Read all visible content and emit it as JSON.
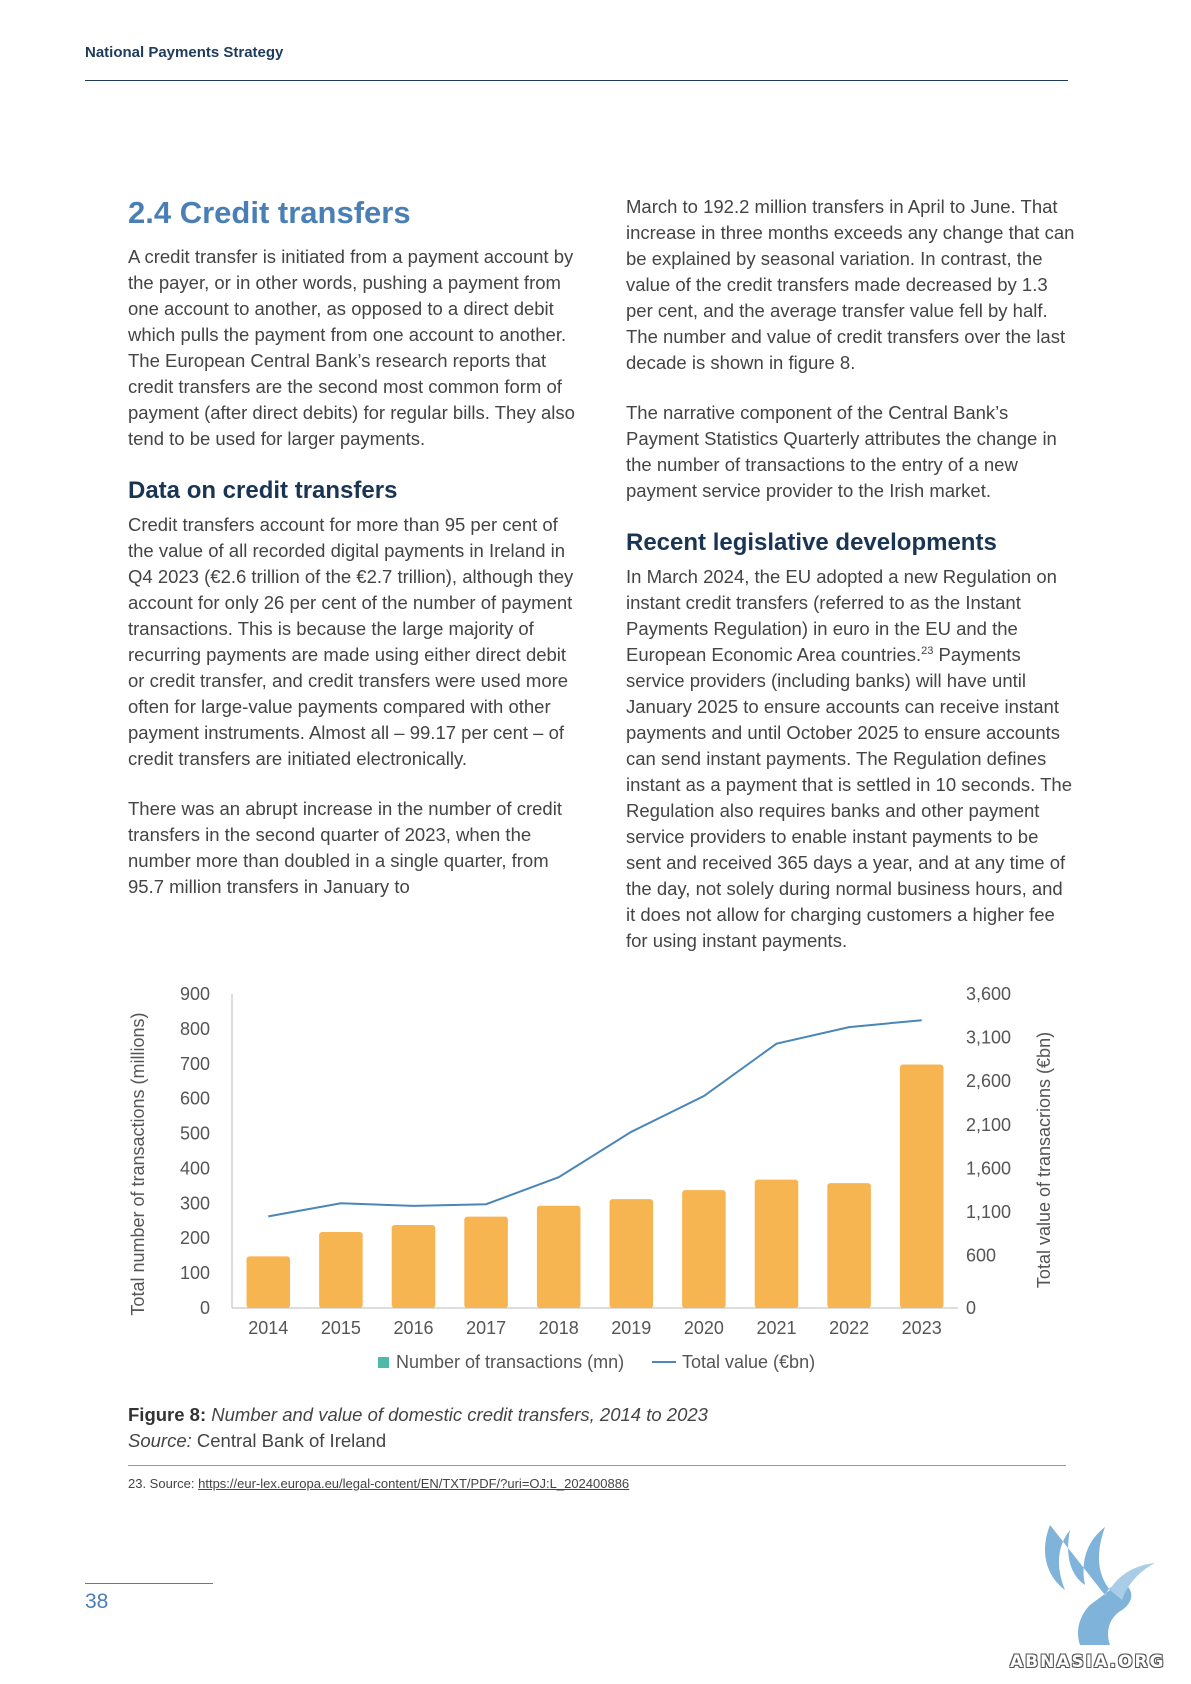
{
  "header": {
    "title": "National Payments Strategy"
  },
  "left_column": {
    "section_heading": "2.4 Credit transfers",
    "intro_paragraph": "A credit transfer is initiated from a payment account by the payer, or in other words, pushing a payment from one account to another, as opposed to a direct debit which pulls the payment from one account to another. The European Central Bank’s research reports that credit transfers are the second most common form of payment (after direct debits) for regular bills. They also tend to be used for larger payments.",
    "data_heading": "Data on credit transfers",
    "data_paragraph_1": "Credit transfers account for more than 95 per cent of the value of all recorded digital payments in Ireland in Q4 2023 (€2.6 trillion of the €2.7 trillion), although they account for only 26 per cent of the number of payment transactions. This is because the large majority of recurring payments are made using either direct debit or credit transfer, and credit transfers were used more often for large-value payments compared with other payment instruments. Almost all – 99.17 per cent – of credit transfers are initiated electronically.",
    "data_paragraph_2": "There was an abrupt increase in the number of credit transfers in the second quarter of 2023, when the number more than doubled in a single quarter, from 95.7 million transfers in January to"
  },
  "right_column": {
    "continued_paragraph": "March to 192.2 million transfers in April to June. That increase in three months exceeds any change that can be explained by seasonal variation. In contrast, the value of the credit transfers made decreased by 1.3 per cent, and the average transfer value fell by half. The number and value of credit transfers over the last decade is shown in figure 8.",
    "narrative_paragraph": "The narrative component of the Central Bank’s Payment Statistics Quarterly attributes the change in the number of transactions to the entry of a new payment service provider to the Irish market.",
    "legislative_heading": "Recent legislative developments",
    "legislative_paragraph_a": "In March 2024, the EU adopted a new Regulation on instant credit transfers (referred to as the Instant Payments Regulation) in euro in the EU and the European Economic Area countries.",
    "footnote_marker": "23",
    "legislative_paragraph_b": " Payments service providers (including banks) will have until January 2025 to ensure accounts can receive instant payments and until October 2025 to ensure accounts can send instant payments. The Regulation defines instant as a payment that is settled in 10 seconds. The Regulation also requires banks and other payment service providers to enable instant payments to be sent and received 365 days a year, and at any time of the day, not solely during normal business hours, and it does not allow for charging customers a higher fee for using instant payments."
  },
  "chart_data": {
    "type": "bar",
    "categories": [
      "2014",
      "2015",
      "2016",
      "2017",
      "2018",
      "2019",
      "2020",
      "2021",
      "2022",
      "2023"
    ],
    "series": [
      {
        "name": "Number of transactions (mn)",
        "type": "bar",
        "axis": "left",
        "color": "#f7b552",
        "values": [
          148,
          218,
          238,
          262,
          293,
          312,
          338,
          368,
          358,
          698
        ]
      },
      {
        "name": "Total value (€bn)",
        "type": "line",
        "axis": "right",
        "color": "#4a86b8",
        "values": [
          1050,
          1200,
          1170,
          1190,
          1500,
          2020,
          2430,
          3030,
          3220,
          3300
        ]
      }
    ],
    "ylabel": "Total number of transactions (millions)",
    "y2label": "Total value of transacrions (€bn)",
    "ylim": [
      0,
      900
    ],
    "y2lim": [
      0,
      3600
    ],
    "yticks": [
      "0",
      "100",
      "200",
      "300",
      "400",
      "500",
      "600",
      "700",
      "800",
      "900"
    ],
    "y2ticks": [
      "0",
      "600",
      "1,100",
      "1,600",
      "2,100",
      "2,600",
      "3,100",
      "3,600"
    ],
    "legend_placement": "bottom",
    "grid": false
  },
  "caption": {
    "label": "Figure 8:",
    "text": " Number and value of domestic credit transfers, 2014 to 2023",
    "source_label": "Source:",
    "source_text": " Central Bank of Ireland"
  },
  "footnote": {
    "prefix": "23.  Source: ",
    "link_text": "https://eur-lex.europa.eu/legal-content/EN/TXT/PDF/?uri=OJ:L_202400886"
  },
  "page_number": "38",
  "watermark": {
    "text": "ABNASIA.ORG"
  }
}
